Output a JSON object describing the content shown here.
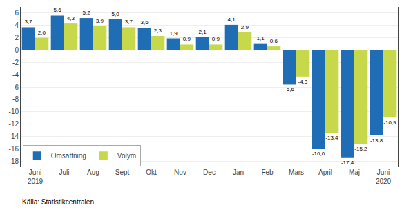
{
  "chart_data": {
    "type": "bar",
    "categories": [
      "Juni\n2019",
      "Juli",
      "Aug",
      "Sept",
      "Okt",
      "Nov",
      "Dec",
      "Jan",
      "Feb",
      "Mars",
      "April",
      "Maj",
      "Juni\n2020"
    ],
    "series": [
      {
        "name": "Omsättning",
        "color": "#1f6eb5",
        "values": [
          3.7,
          5.6,
          5.2,
          5.0,
          3.6,
          1.9,
          2.1,
          4.1,
          1.1,
          -5.6,
          -16.0,
          -17.4,
          -13.8
        ],
        "value_labels": [
          "3,7",
          "5,6",
          "5,2",
          "5,0",
          "3,6",
          "1,9",
          "2,1",
          "4,1",
          "1,1",
          "-5,6",
          "-16,0",
          "-17,4",
          "-13,8"
        ]
      },
      {
        "name": "Volym",
        "color": "#c8d84b",
        "values": [
          2.0,
          4.3,
          3.9,
          3.7,
          2.3,
          0.9,
          0.9,
          2.9,
          0.6,
          -4.3,
          -13.4,
          -15.2,
          -10.9
        ],
        "value_labels": [
          "2,0",
          "4,3",
          "3,9",
          "3,7",
          "2,3",
          "0,9",
          "0,9",
          "2,9",
          "0,6",
          "-4,3",
          "-13,4",
          "-15,2",
          "-10,9"
        ]
      }
    ],
    "ylim": [
      -19,
      7
    ],
    "yticks": [
      -18,
      -16,
      -14,
      -12,
      -10,
      -8,
      -6,
      -4,
      -2,
      0,
      2,
      4,
      6
    ],
    "grid": true,
    "legend": "lower left",
    "data_labels": true,
    "annotations": [
      {
        "text": "Källa: Statistikcentralen"
      }
    ]
  }
}
